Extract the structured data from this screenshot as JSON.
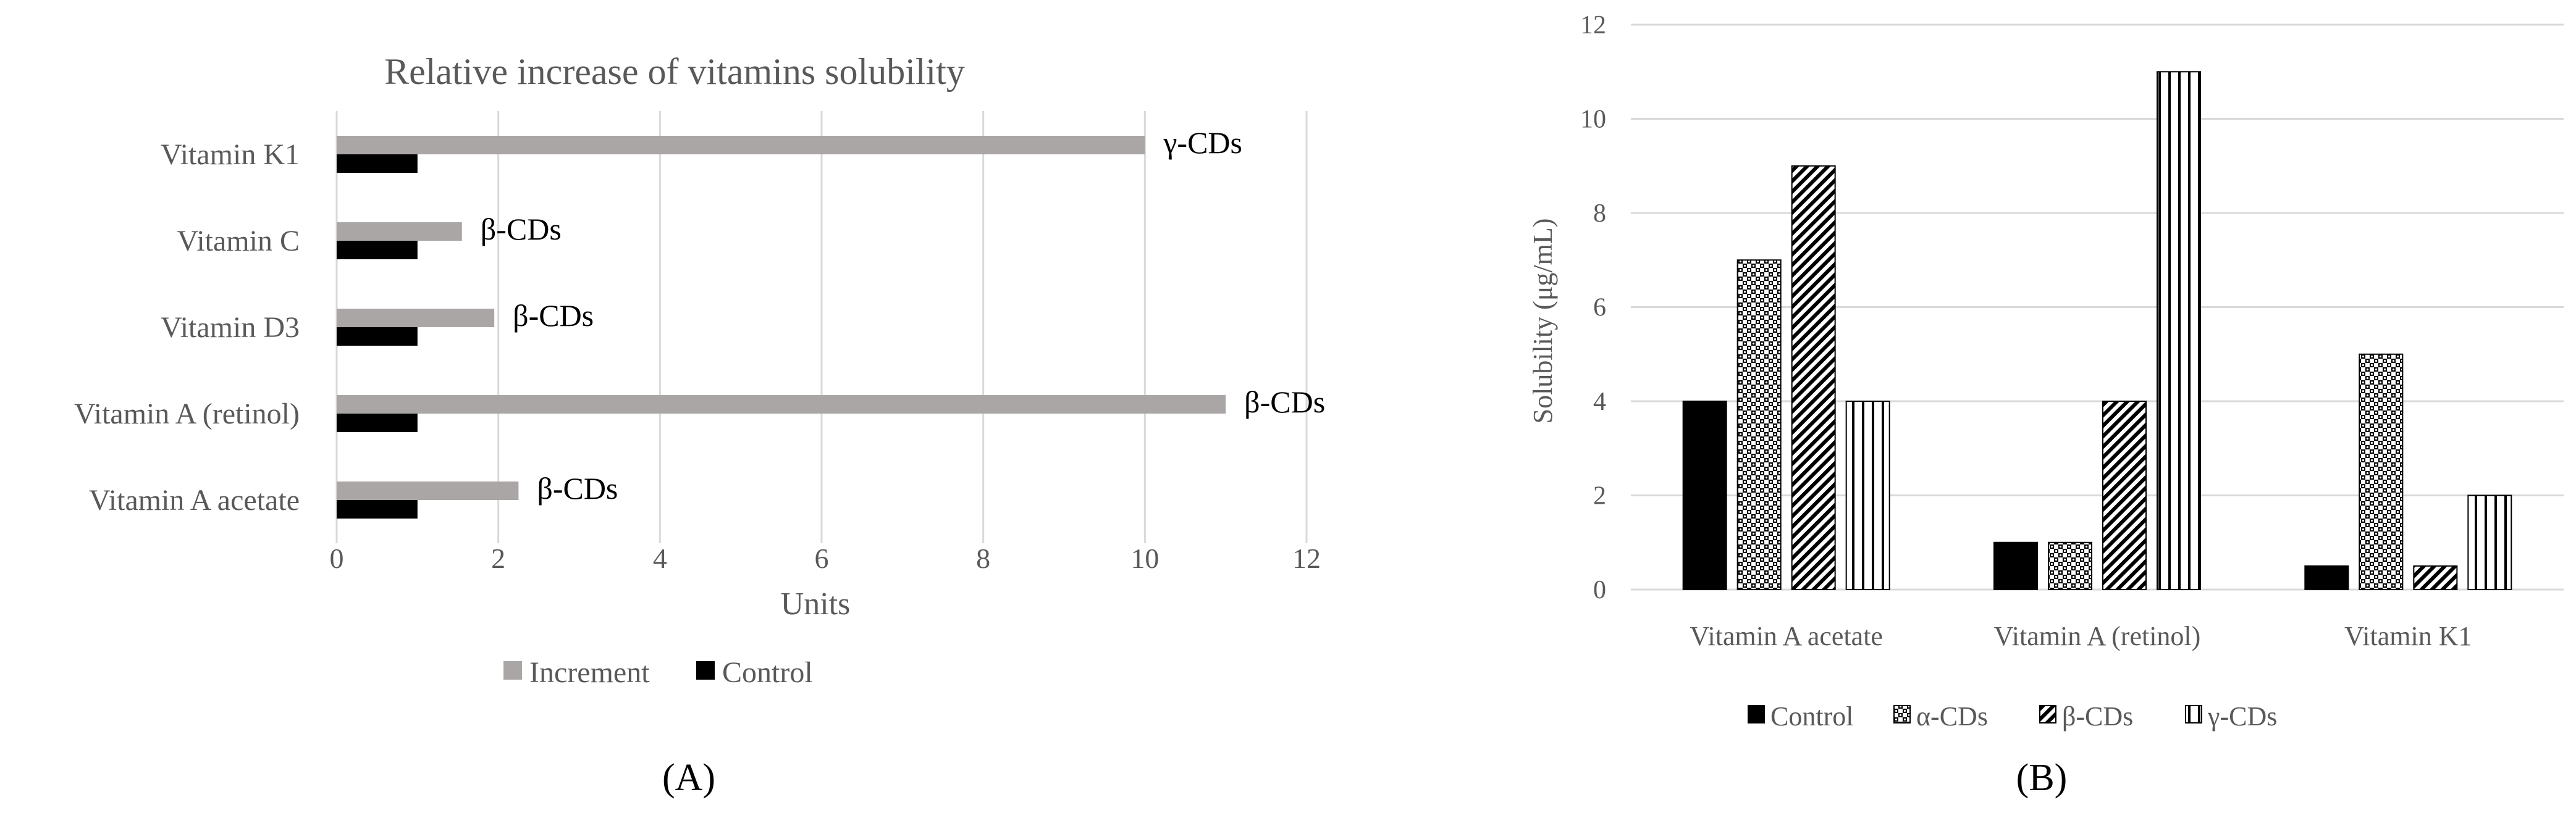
{
  "panel_labels": [
    "(A)",
    "(B)"
  ],
  "colors": {
    "increment": "#aaa6a6",
    "control": "#000000",
    "grid": "#d9d9d9",
    "axis_text": "#595959"
  },
  "chart_data": [
    {
      "type": "bar",
      "orientation": "horizontal",
      "title": "Relative increase of vitamins solubility",
      "xlabel": "Units",
      "ylabel": "",
      "xlim": [
        0,
        12
      ],
      "xticks": [
        "0",
        "2",
        "4",
        "6",
        "8",
        "10",
        "12"
      ],
      "grid": true,
      "legend_position": "bottom",
      "categories": [
        "Vitamin K1",
        "Vitamin C",
        "Vitamin D3",
        "Vitamin A (retinol)",
        "Vitamin A acetate"
      ],
      "series": [
        {
          "name": "Increment",
          "values": [
            10,
            1.55,
            1.95,
            11,
            2.25
          ]
        },
        {
          "name": "Control",
          "values": [
            1,
            1,
            1,
            1,
            1
          ]
        }
      ],
      "annotations": [
        "γ-CDs",
        "β-CDs",
        "β-CDs",
        "β-CDs",
        "β-CDs"
      ]
    },
    {
      "type": "bar",
      "title": "",
      "xlabel": "",
      "ylabel": "Solubility (μg/mL)",
      "ylim": [
        0,
        12
      ],
      "yticks": [
        "0",
        "2",
        "4",
        "6",
        "8",
        "10",
        "12"
      ],
      "grid": true,
      "legend_position": "bottom",
      "categories": [
        "Vitamin A acetate",
        "Vitamin A (retinol)",
        "Vitamin K1"
      ],
      "series": [
        {
          "name": "Control",
          "values": [
            4,
            1,
            0.5
          ]
        },
        {
          "name": "α-CDs",
          "values": [
            7,
            1,
            5
          ]
        },
        {
          "name": "β-CDs",
          "values": [
            9,
            4,
            0.5
          ]
        },
        {
          "name": "γ-CDs",
          "values": [
            4,
            11,
            2
          ]
        }
      ]
    }
  ]
}
